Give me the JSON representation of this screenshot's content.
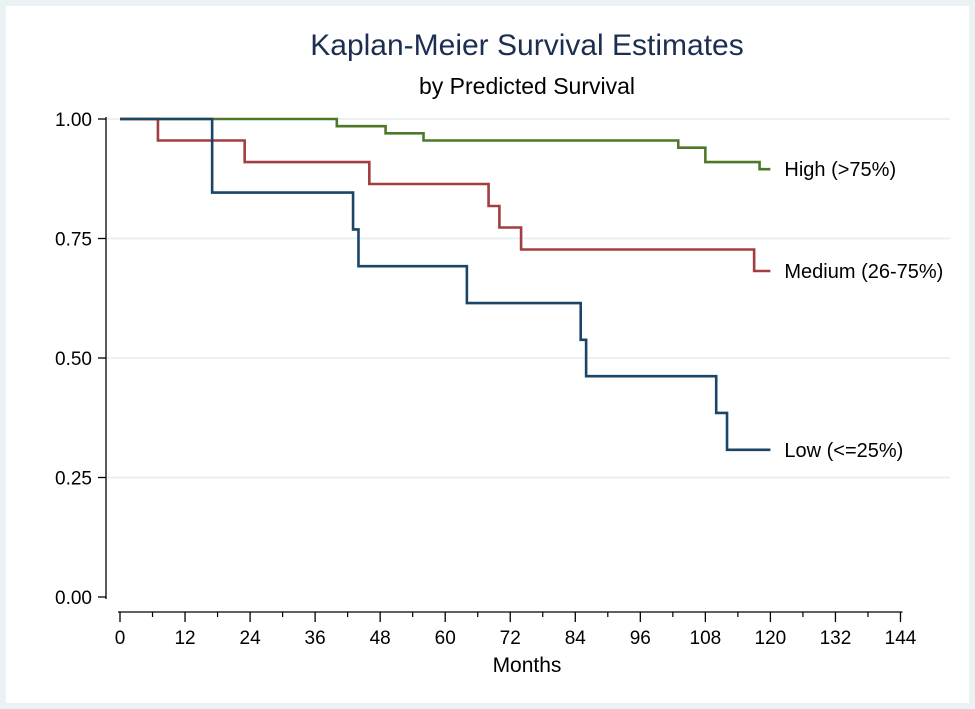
{
  "chart_data": {
    "type": "line",
    "step": true,
    "title": "Kaplan-Meier Survival Estimates",
    "subtitle": "by Predicted Survival",
    "xlabel": "Months",
    "ylabel": "",
    "xlim": [
      0,
      144
    ],
    "ylim": [
      0,
      1
    ],
    "x_ticks": [
      0,
      12,
      24,
      36,
      48,
      60,
      72,
      84,
      96,
      108,
      120,
      132,
      144
    ],
    "y_ticks": [
      0.0,
      0.25,
      0.5,
      0.75,
      1.0
    ],
    "y_tick_labels": [
      "0.00",
      "0.25",
      "0.50",
      "0.75",
      "1.00"
    ],
    "grid": "horizontal",
    "legend": "labels at line ends (right)",
    "colors": {
      "background": "#eaf2f3",
      "plot": "#ffffff",
      "grid": "#e4eeee",
      "axis": "#000000",
      "title": "#1c2e52"
    },
    "series": [
      {
        "name": "High (>75%)",
        "color": "#4d7829",
        "points": [
          [
            0,
            1.0
          ],
          [
            40,
            0.985
          ],
          [
            49,
            0.97
          ],
          [
            56,
            0.955
          ],
          [
            103,
            0.94
          ],
          [
            108,
            0.91
          ],
          [
            118,
            0.895
          ],
          [
            120,
            0.895
          ]
        ]
      },
      {
        "name": "Medium (26-75%)",
        "color": "#a23d40",
        "points": [
          [
            0,
            1.0
          ],
          [
            7,
            0.955
          ],
          [
            23,
            0.91
          ],
          [
            46,
            0.864
          ],
          [
            68,
            0.818
          ],
          [
            70,
            0.773
          ],
          [
            74,
            0.727
          ],
          [
            117,
            0.682
          ],
          [
            120,
            0.682
          ]
        ]
      },
      {
        "name": "Low (<=25%)",
        "color": "#1a4567",
        "points": [
          [
            0,
            1.0
          ],
          [
            17,
            0.846
          ],
          [
            43,
            0.769
          ],
          [
            44,
            0.692
          ],
          [
            64,
            0.615
          ],
          [
            85,
            0.538
          ],
          [
            86,
            0.462
          ],
          [
            110,
            0.385
          ],
          [
            112,
            0.308
          ],
          [
            120,
            0.308
          ]
        ]
      }
    ]
  }
}
